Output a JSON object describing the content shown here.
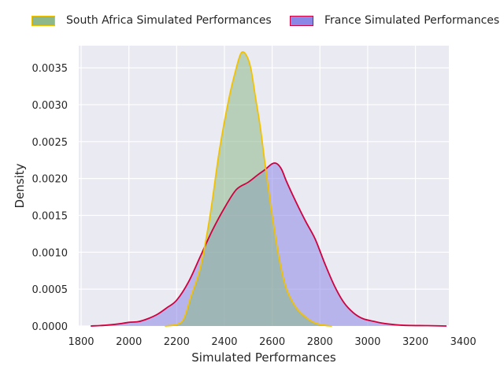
{
  "chart_data": {
    "type": "area",
    "title": "",
    "xlabel": "Simulated Performances",
    "ylabel": "Density",
    "xlim": [
      1790,
      3340
    ],
    "ylim": [
      0,
      0.0038
    ],
    "xticks": [
      "1800",
      "2000",
      "2200",
      "2400",
      "2600",
      "2800",
      "3000",
      "3200",
      "3400"
    ],
    "yticks": [
      "0.0000",
      "0.0005",
      "0.0010",
      "0.0015",
      "0.0020",
      "0.0025",
      "0.0030",
      "0.0035"
    ],
    "grid": true,
    "legend_position": "top",
    "series": [
      {
        "name": "South Africa Simulated Performances",
        "fill": "#8db88b",
        "line": "#f2c200",
        "x": [
          2150,
          2200,
          2230,
          2260,
          2300,
          2340,
          2380,
          2420,
          2450,
          2470,
          2490,
          2510,
          2530,
          2550,
          2570,
          2600,
          2630,
          2660,
          2700,
          2740,
          2780,
          2820,
          2850
        ],
        "y": [
          0.0,
          2e-05,
          0.0001,
          0.0004,
          0.0008,
          0.0015,
          0.0024,
          0.0031,
          0.0035,
          0.0037,
          0.00368,
          0.0035,
          0.0031,
          0.0027,
          0.0022,
          0.0015,
          0.0009,
          0.0005,
          0.00025,
          0.00012,
          4e-05,
          1e-05,
          0.0
        ]
      },
      {
        "name": "France Simulated Performances",
        "fill": "#8b87e6",
        "line": "#d1003f",
        "x": [
          1840,
          1900,
          1960,
          2000,
          2040,
          2080,
          2120,
          2160,
          2200,
          2250,
          2300,
          2350,
          2400,
          2450,
          2500,
          2540,
          2570,
          2600,
          2620,
          2640,
          2660,
          2700,
          2740,
          2780,
          2820,
          2860,
          2900,
          2940,
          2980,
          3030,
          3080,
          3150,
          3250,
          3330
        ],
        "y": [
          0.0,
          1e-05,
          3e-05,
          5e-05,
          6e-05,
          0.0001,
          0.00016,
          0.00025,
          0.00035,
          0.0006,
          0.00095,
          0.0013,
          0.0016,
          0.00185,
          0.00195,
          0.00205,
          0.00212,
          0.0022,
          0.0022,
          0.00212,
          0.00196,
          0.00168,
          0.00142,
          0.00118,
          0.00085,
          0.00055,
          0.00032,
          0.00018,
          0.0001,
          6e-05,
          3e-05,
          1e-05,
          5e-06,
          0.0
        ]
      }
    ]
  }
}
